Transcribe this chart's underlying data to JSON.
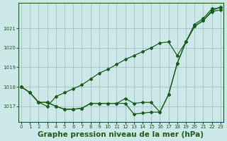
{
  "background_color": "#cce8e8",
  "grid_color": "#99bbbb",
  "line_color": "#1a5c1a",
  "xlabel": "Graphe pression niveau de la mer (hPa)",
  "xlabel_fontsize": 7.5,
  "ylim": [
    1016.2,
    1022.3
  ],
  "xlim": [
    -0.3,
    23.3
  ],
  "yticks": [
    1017,
    1018,
    1019,
    1020,
    1021
  ],
  "xticks": [
    0,
    1,
    2,
    3,
    4,
    5,
    6,
    7,
    8,
    9,
    10,
    11,
    12,
    13,
    14,
    15,
    16,
    17,
    18,
    19,
    20,
    21,
    22,
    23
  ],
  "series1": [
    1018.0,
    1017.7,
    1017.2,
    1017.0,
    1017.5,
    1017.7,
    1017.9,
    1018.1,
    1018.4,
    1018.7,
    1018.9,
    1019.15,
    1019.4,
    1019.6,
    1019.8,
    1020.0,
    1020.25,
    1020.3,
    1019.6,
    1020.3,
    1021.1,
    1021.4,
    1021.9,
    1022.1
  ],
  "series2": [
    1018.0,
    1017.7,
    1017.2,
    1017.2,
    1017.0,
    1016.85,
    1016.85,
    1016.9,
    1017.15,
    1017.15,
    1017.15,
    1017.15,
    1017.15,
    1016.6,
    1016.65,
    1016.7,
    1016.7,
    1017.6,
    1019.2,
    1020.3,
    1021.1,
    1021.4,
    1021.85,
    1021.95
  ],
  "series3": [
    1018.0,
    1017.7,
    1017.2,
    1017.2,
    1017.0,
    1016.85,
    1016.85,
    1016.9,
    1017.15,
    1017.15,
    1017.15,
    1017.15,
    1017.4,
    1017.15,
    1017.2,
    1017.2,
    1016.7,
    1017.6,
    1019.2,
    1020.3,
    1021.2,
    1021.5,
    1022.0,
    1022.05
  ],
  "marker": "D",
  "marker_size": 2.0,
  "line_width": 0.9
}
